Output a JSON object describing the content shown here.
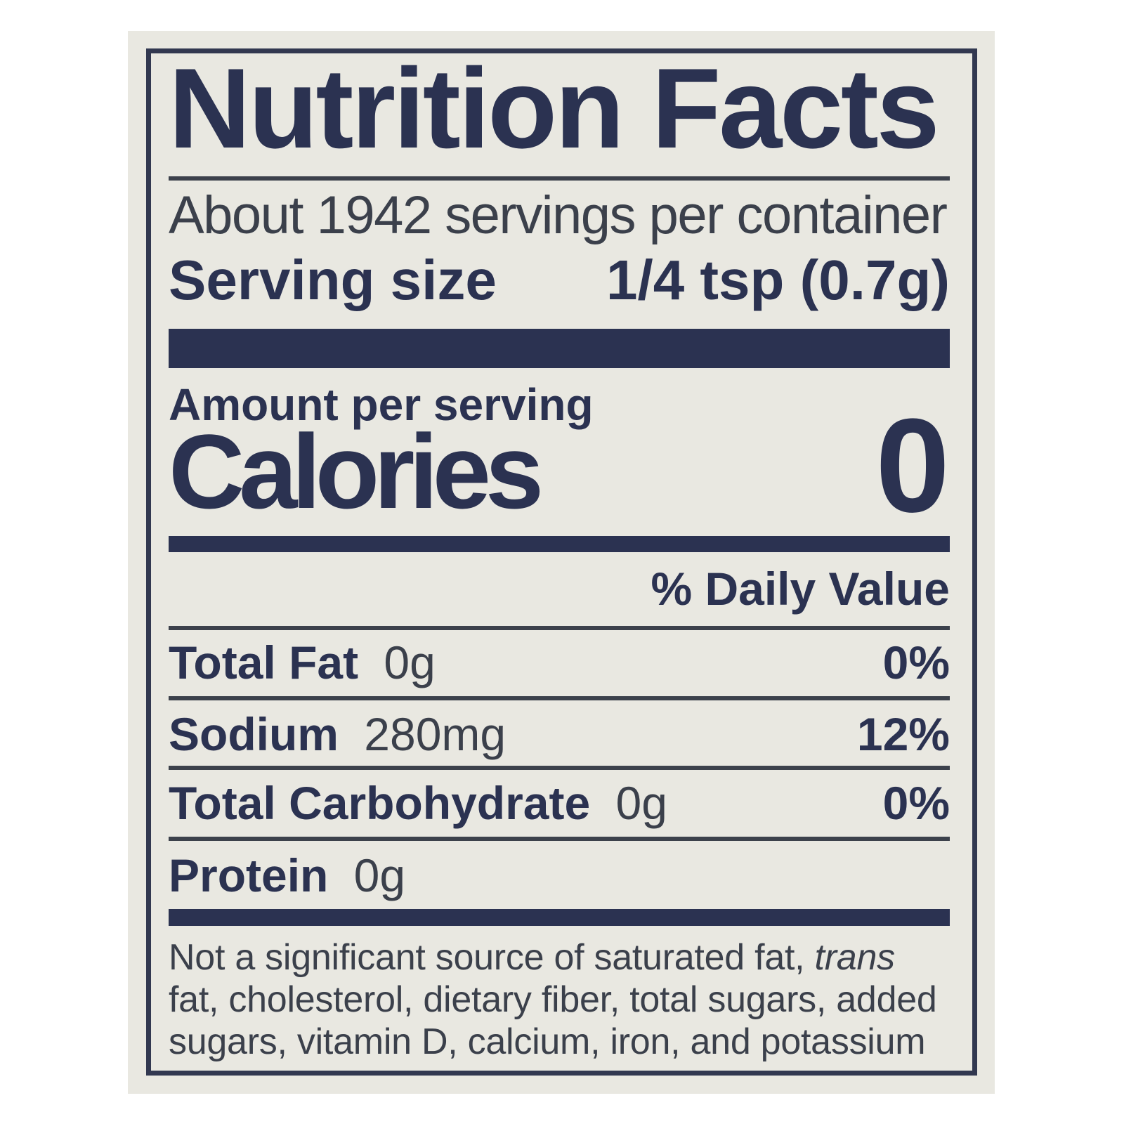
{
  "label": {
    "title": "Nutrition Facts",
    "servings_per_container": "About 1942 servings per container",
    "serving_size_label": "Serving size",
    "serving_size_value": "1/4 tsp (0.7g)",
    "amount_per_serving": "Amount per serving",
    "calories_label": "Calories",
    "calories_value": "0",
    "daily_value_header": "% Daily Value",
    "nutrients": [
      {
        "name": "Total Fat",
        "amount": "0g",
        "daily_value": "0%"
      },
      {
        "name": "Sodium",
        "amount": "280mg",
        "daily_value": "12%"
      },
      {
        "name": "Total Carbohydrate",
        "amount": "0g",
        "daily_value": "0%"
      },
      {
        "name": "Protein",
        "amount": "0g",
        "daily_value": ""
      }
    ],
    "footnote": {
      "line1_before_italic": "Not a significant source of saturated fat, ",
      "line1_italic": "trans",
      "line2": "fat, cholesterol, dietary fiber, total sugars, added",
      "line3": "sugars, vitamin D, calcium, iron, and potassium"
    },
    "colors": {
      "navy": "#2b3251",
      "ink": "#3b404b",
      "paper": "#e9e8e1",
      "page_background": "#ffffff"
    }
  }
}
